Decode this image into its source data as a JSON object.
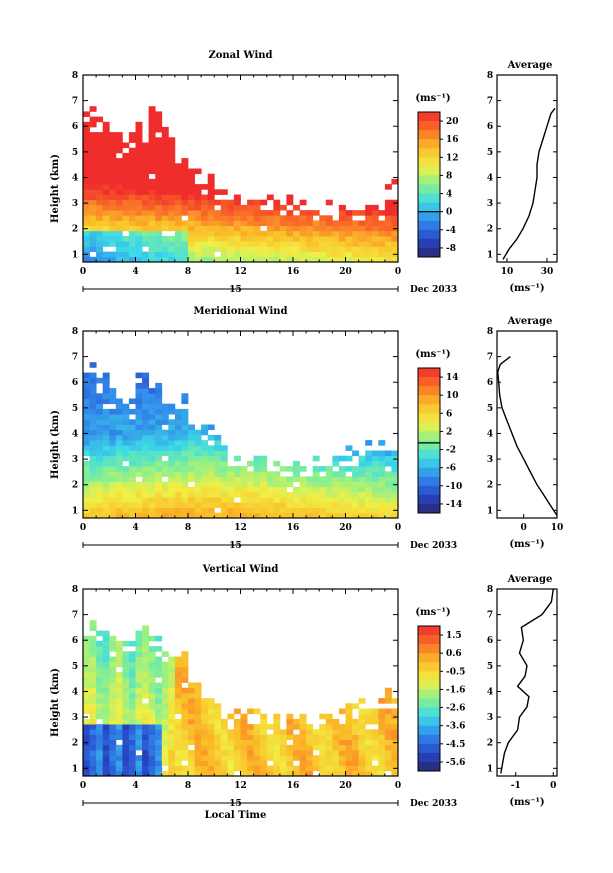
{
  "figure": {
    "local_time_label": "Local Time",
    "date_label": "Dec 2033",
    "day_label": "15",
    "unit_label": "(ms⁻¹)",
    "average_title": "Average",
    "y_axis_label": "Height (km)"
  },
  "chart_data": [
    {
      "type": "heatmap",
      "title": "Zonal Wind",
      "ylabel": "Height (km)",
      "xlim": [
        0,
        24
      ],
      "ylim": [
        0.7,
        8
      ],
      "x_ticks": [
        "0",
        "4",
        "8",
        "12",
        "16",
        "20",
        "0"
      ],
      "y_ticks": [
        "1",
        "2",
        "3",
        "4",
        "5",
        "6",
        "7",
        "8"
      ],
      "colorbar": {
        "label": "(ms⁻¹)",
        "range": [
          -10,
          22
        ],
        "ticks": [
          "20",
          "16",
          "12",
          "8",
          "4",
          "0",
          "-4",
          "-8"
        ],
        "zero_line": 0
      },
      "data_top_height_km": [
        6.5,
        6.4,
        6.0,
        5.6,
        6.2,
        6.9,
        5.9,
        4.8,
        4.3,
        4.0,
        3.6,
        3.4,
        3.2,
        3.2,
        3.4,
        3.3,
        3.1,
        3.0,
        3.0,
        2.9,
        2.9,
        2.9,
        3.0,
        3.8
      ],
      "average_profile": {
        "title": "Average",
        "xlabel": "(ms⁻¹)",
        "x_ticks": [
          "10",
          "30"
        ],
        "xlim": [
          5,
          35
        ],
        "heights": [
          0.8,
          1.2,
          1.6,
          2.0,
          2.5,
          3.0,
          3.5,
          4.0,
          4.5,
          5.0,
          5.5,
          6.0,
          6.5,
          6.7
        ],
        "values": [
          8,
          11,
          15,
          18,
          21,
          23,
          24,
          25,
          25,
          26,
          28,
          30,
          32,
          34
        ]
      }
    },
    {
      "type": "heatmap",
      "title": "Meridional Wind",
      "ylabel": "Height (km)",
      "xlim": [
        0,
        24
      ],
      "ylim": [
        0.7,
        8
      ],
      "x_ticks": [
        "0",
        "4",
        "8",
        "12",
        "16",
        "20",
        "0"
      ],
      "y_ticks": [
        "1",
        "2",
        "3",
        "4",
        "5",
        "6",
        "7",
        "8"
      ],
      "colorbar": {
        "label": "(ms⁻¹)",
        "range": [
          -15,
          16
        ],
        "ticks": [
          "14",
          "10",
          "6",
          "2",
          "-2",
          "-6",
          "-10",
          "-14"
        ],
        "zero_line": 0
      },
      "data_top_height_km": [
        6.6,
        6.2,
        5.5,
        5.2,
        6.4,
        6.1,
        5.2,
        5.6,
        4.6,
        4.2,
        3.9,
        3.4,
        3.2,
        3.1,
        3.0,
        3.0,
        3.0,
        3.0,
        3.0,
        3.1,
        3.4,
        3.5,
        3.7,
        3.8
      ],
      "average_profile": {
        "title": "Average",
        "xlabel": "(ms⁻¹)",
        "x_ticks": [
          "0",
          "10"
        ],
        "xlim": [
          -8,
          10
        ],
        "heights": [
          0.8,
          1.2,
          1.6,
          2.0,
          2.5,
          3.0,
          3.5,
          4.0,
          4.5,
          5.0,
          5.5,
          6.0,
          6.4,
          6.7,
          7.0
        ],
        "values": [
          10,
          8,
          6,
          4,
          2,
          0,
          -2,
          -3.5,
          -5,
          -6.5,
          -7.2,
          -7.5,
          -7.8,
          -7,
          -4
        ]
      }
    },
    {
      "type": "heatmap",
      "title": "Vertical Wind",
      "ylabel": "Height (km)",
      "xlabel": "Local Time",
      "xlim": [
        0,
        24
      ],
      "ylim": [
        0.7,
        8
      ],
      "x_ticks": [
        "0",
        "4",
        "8",
        "12",
        "16",
        "20",
        "0"
      ],
      "y_ticks": [
        "1",
        "2",
        "3",
        "4",
        "5",
        "6",
        "7",
        "8"
      ],
      "colorbar": {
        "label": "(ms⁻¹)",
        "range": [
          -6,
          2
        ],
        "ticks": [
          "1.5",
          "0.6",
          "-0.5",
          "-1.6",
          "-2.6",
          "-3.6",
          "-4.5",
          "-5.6"
        ]
      },
      "data_top_height_km": [
        6.7,
        6.4,
        6.6,
        6.1,
        6.5,
        6.0,
        5.7,
        5.5,
        4.5,
        4.0,
        3.4,
        3.2,
        3.1,
        3.3,
        3.0,
        2.9,
        2.9,
        2.8,
        3.3,
        3.4,
        3.6,
        3.8,
        3.9,
        4.0
      ],
      "average_profile": {
        "title": "Average",
        "xlabel": "(ms⁻¹)",
        "x_ticks": [
          "-1",
          "0"
        ],
        "xlim": [
          -1.5,
          0.1
        ],
        "heights": [
          0.8,
          1.2,
          1.6,
          2.0,
          2.5,
          3.0,
          3.4,
          3.8,
          4.2,
          4.6,
          5.0,
          5.5,
          6.0,
          6.5,
          7.0,
          7.5,
          8.0
        ],
        "values": [
          -1.4,
          -1.35,
          -1.3,
          -1.2,
          -0.95,
          -0.9,
          -0.7,
          -0.65,
          -0.95,
          -0.75,
          -0.7,
          -0.9,
          -0.8,
          -0.85,
          -0.3,
          -0.05,
          0.0
        ]
      }
    }
  ]
}
